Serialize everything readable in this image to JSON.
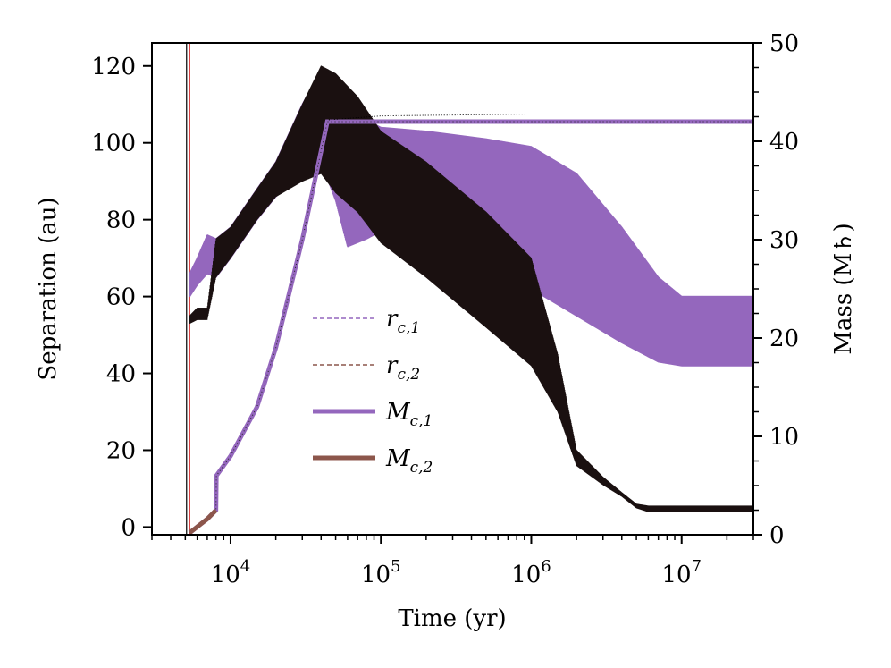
{
  "chart_data": {
    "type": "line",
    "title": "",
    "xlabel": "Time (yr)",
    "ylabel": "Separation (au)",
    "ylabel_right": "Mass (M♄)",
    "xscale": "log",
    "xlim": [
      3000,
      30000000
    ],
    "ylim": [
      -2,
      126
    ],
    "ylim_right": [
      0,
      50
    ],
    "xticks": [
      {
        "value": 10000,
        "base": "10",
        "exp": "4"
      },
      {
        "value": 100000,
        "base": "10",
        "exp": "5"
      },
      {
        "value": 1000000,
        "base": "10",
        "exp": "6"
      },
      {
        "value": 10000000,
        "base": "10",
        "exp": "7"
      }
    ],
    "yticks": [
      {
        "value": 0,
        "label": "0"
      },
      {
        "value": 20,
        "label": "20"
      },
      {
        "value": 40,
        "label": "40"
      },
      {
        "value": 60,
        "label": "60"
      },
      {
        "value": 80,
        "label": "80"
      },
      {
        "value": 100,
        "label": "100"
      },
      {
        "value": 120,
        "label": "120"
      }
    ],
    "yticks_right": [
      {
        "value": 0,
        "label": "0"
      },
      {
        "value": 10,
        "label": "10"
      },
      {
        "value": 20,
        "label": "20"
      },
      {
        "value": 30,
        "label": "30"
      },
      {
        "value": 40,
        "label": "40"
      },
      {
        "value": 50,
        "label": "50"
      }
    ],
    "vlines": [
      {
        "x": 5100,
        "color": "#000000"
      },
      {
        "x": 5350,
        "color": "#d62728"
      }
    ],
    "legend": {
      "location": "center",
      "entries": [
        {
          "label": "r_{c,1}",
          "sym": "r",
          "sub": "c,1",
          "style": "dashed",
          "color": "#9467bd"
        },
        {
          "label": "r_{c,2}",
          "sym": "r",
          "sub": "c,2",
          "style": "dashed",
          "color": "#8c564b"
        },
        {
          "label": "M_{c,1}",
          "sym": "M",
          "sub": "c,1",
          "style": "solid",
          "color": "#9467bd"
        },
        {
          "label": "M_{c,2}",
          "sym": "M",
          "sub": "c,2",
          "style": "solid",
          "color": "#8c564b"
        }
      ]
    },
    "series": [
      {
        "name": "r_{c,1}",
        "axis": "left",
        "color": "#9467bd",
        "style": "dashed",
        "x": [
          5350,
          6000,
          7000,
          8000,
          10000,
          15000,
          20000,
          30000,
          40000,
          50000,
          60000,
          80000,
          100000,
          200000,
          500000,
          1000000,
          2000000,
          4000000,
          7000000,
          10000000,
          30000000
        ],
        "ymax": [
          66,
          70,
          76,
          75,
          78,
          88,
          95,
          110,
          119,
          115,
          110,
          106,
          104,
          103,
          101,
          99,
          92,
          78,
          65,
          60,
          60
        ],
        "ymin": [
          60,
          63,
          66,
          65,
          70,
          80,
          86,
          92,
          95,
          85,
          73,
          75,
          77,
          73,
          68,
          62,
          55,
          48,
          43,
          42,
          42
        ]
      },
      {
        "name": "r_{c,2}",
        "axis": "left",
        "color": "#8c564b",
        "style": "dashed",
        "x": [
          5350,
          6000,
          7000,
          8000,
          10000,
          15000,
          20000,
          30000,
          40000,
          50000,
          70000,
          100000,
          200000,
          500000,
          1000000,
          1500000,
          2000000,
          3000000,
          4000000,
          5000000,
          6000000,
          10000000,
          30000000
        ],
        "ymax": [
          55,
          57,
          57,
          75,
          78,
          88,
          95,
          110,
          120,
          118,
          112,
          103,
          95,
          82,
          70,
          45,
          20,
          13,
          9,
          6,
          5.5,
          5.5,
          5.5
        ],
        "ymin": [
          53,
          54,
          54,
          65,
          70,
          80,
          86,
          90,
          92,
          87,
          82,
          74,
          65,
          52,
          42,
          30,
          16,
          11,
          8,
          5,
          4,
          4,
          4
        ]
      },
      {
        "name": "M_{c,1}",
        "axis": "right",
        "color": "#9467bd",
        "style": "solid",
        "x": [
          5350,
          6000,
          7000,
          8000,
          8050,
          10000,
          15000,
          20000,
          30000,
          40000,
          44000,
          50000,
          100000,
          1000000,
          30000000
        ],
        "y": [
          0.2,
          0.8,
          1.6,
          2.5,
          6,
          8,
          13,
          19,
          30,
          39,
          42,
          42,
          42,
          42,
          42
        ]
      },
      {
        "name": "M_{c,2}",
        "axis": "right",
        "color": "#8c564b",
        "style": "solid",
        "x": [
          5350,
          6000,
          7000,
          8000
        ],
        "y": [
          0.2,
          0.8,
          1.6,
          2.5
        ]
      },
      {
        "name": "separation upper",
        "axis": "left",
        "color": "#000000",
        "style": "dotted",
        "x": [
          45000,
          100000,
          1000000,
          30000000
        ],
        "y": [
          106,
          107,
          107.5,
          107.5
        ]
      }
    ]
  }
}
